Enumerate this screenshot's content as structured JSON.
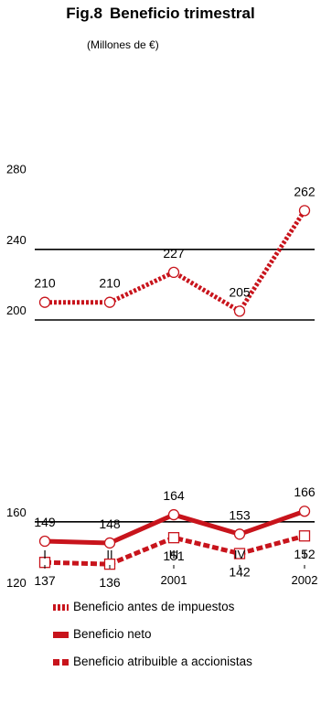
{
  "title_fig": "Fig.8",
  "title_text": "Beneficio trimestral",
  "subtitle": "(Millones de €)",
  "colors": {
    "series": "#c8141c",
    "grid": "#000000"
  },
  "chart_data": [
    {
      "type": "line",
      "categories": [
        "I",
        "II",
        "III",
        "IV",
        "I"
      ],
      "years": [
        {
          "label": "2001",
          "under": 2
        },
        {
          "label": "2002",
          "under": 4
        }
      ],
      "ylim": [
        200,
        280
      ],
      "yticks": [
        200,
        240,
        280
      ],
      "grid": true,
      "series": [
        {
          "name": "Beneficio antes de impuestos",
          "style": "dotted",
          "values": [
            210,
            210,
            227,
            205,
            262
          ],
          "labels_position": "above"
        }
      ]
    },
    {
      "type": "line",
      "categories": [
        "I",
        "II",
        "III",
        "IV",
        "I"
      ],
      "ylim": [
        120,
        200
      ],
      "yticks": [
        120,
        160
      ],
      "grid": true,
      "series": [
        {
          "name": "Beneficio neto",
          "style": "solid",
          "values": [
            149,
            148,
            164,
            153,
            166
          ],
          "labels_position": "above"
        },
        {
          "name": "Beneficio atribuible a accionistas",
          "style": "dashed",
          "values": [
            137,
            136,
            151,
            142,
            152
          ],
          "labels_position": "below"
        }
      ]
    }
  ],
  "legend": [
    {
      "label": "Beneficio antes de impuestos",
      "style": "dotted"
    },
    {
      "label": "Beneficio neto",
      "style": "solid"
    },
    {
      "label": "Beneficio atribuible a accionistas",
      "style": "dashed"
    }
  ]
}
